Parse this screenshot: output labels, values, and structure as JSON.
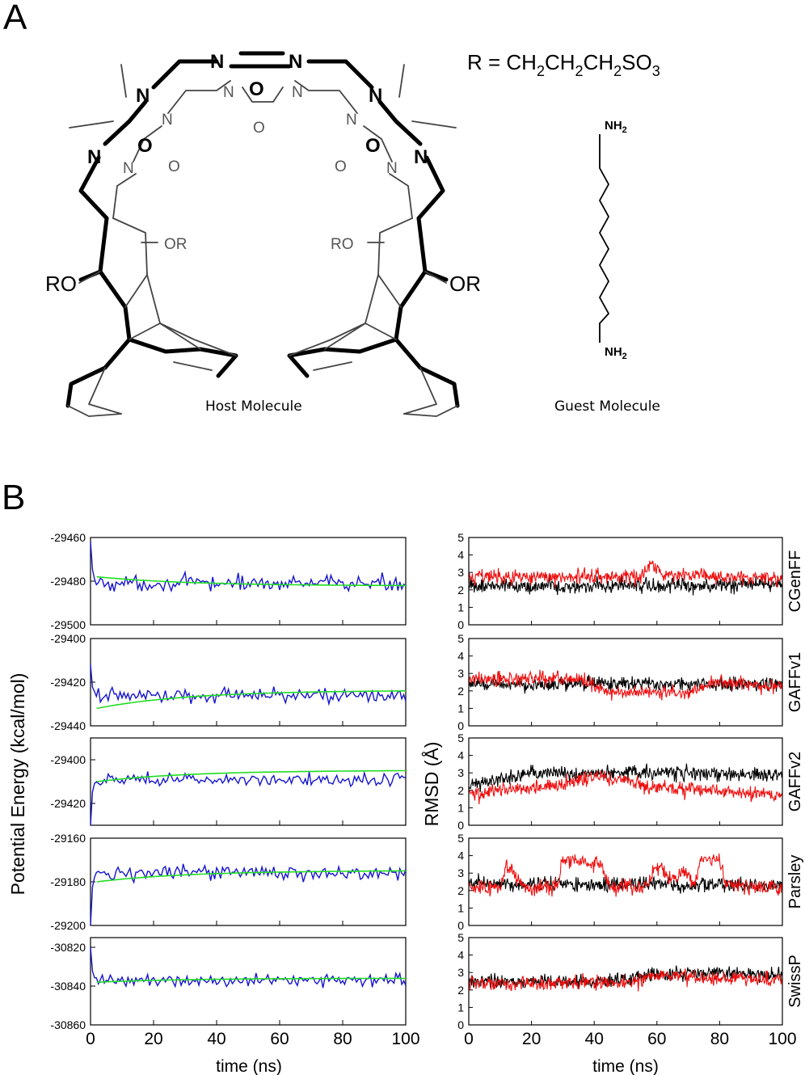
{
  "panel_a": {
    "letter": "A",
    "r_formula": {
      "prefix": "R = CH",
      "sub": "2",
      "frag": "CH",
      "end": "SO",
      "end_sub": "3"
    },
    "host_caption": "Host Molecule",
    "guest_caption": "Guest Molecule",
    "atoms": {
      "nitrogen": "N",
      "oxygen": "O",
      "ro": "RO",
      "or": "OR",
      "nh": "NH",
      "nh_sub": "2"
    }
  },
  "panel_b": {
    "letter": "B"
  },
  "chart_data": [
    {
      "type": "line",
      "title": "",
      "xlabel": "time (ns)",
      "ylabel": "Potential Energy (kcal/mol)",
      "xlim": [
        0,
        100
      ],
      "xticks": [
        0,
        20,
        40,
        60,
        80,
        100
      ],
      "grid": false,
      "series_colors": {
        "energy": "#1515d0",
        "running_average": "#22dd22"
      },
      "panels": [
        {
          "ylim": [
            -29500,
            -29460
          ],
          "yticks": [
            -29460,
            -29480,
            -29500
          ],
          "start": -29462,
          "settle": -29481,
          "noise": 3.5,
          "avg_start": -29478,
          "avg_end": -29482
        },
        {
          "ylim": [
            -29440,
            -29400
          ],
          "yticks": [
            -29400,
            -29420,
            -29440
          ],
          "start": -29412,
          "settle": -29426,
          "noise": 3.2,
          "avg_start": -29432,
          "avg_end": -29424
        },
        {
          "ylim": [
            -29430,
            -29390
          ],
          "yticks": [
            -29400,
            -29420
          ],
          "start": -29430,
          "settle": -29409,
          "noise": 2.8,
          "avg_start": -29410,
          "avg_end": -29405
        },
        {
          "ylim": [
            -29200,
            -29160
          ],
          "yticks": [
            -29160,
            -29180,
            -29200
          ],
          "start": -29200,
          "settle": -29176,
          "noise": 3.3,
          "avg_start": -29180,
          "avg_end": -29175
        },
        {
          "ylim": [
            -30860,
            -30815
          ],
          "yticks": [
            -30820,
            -30840,
            -30860
          ],
          "start": -30820,
          "settle": -30837,
          "noise": 3.3,
          "avg_start": -30838,
          "avg_end": -30836
        }
      ]
    },
    {
      "type": "line",
      "title": "",
      "xlabel": "time (ns)",
      "ylabel": "RMSD (Å)",
      "xlim": [
        0,
        100
      ],
      "xticks": [
        0,
        20,
        40,
        60,
        80,
        100
      ],
      "ylim": [
        0,
        5
      ],
      "yticks": [
        0,
        1,
        2,
        3,
        4,
        5
      ],
      "grid": false,
      "series_colors": {
        "black": "#000000",
        "red": "#ee1111"
      },
      "panels": [
        {
          "label": "CGenFF",
          "black": [
            [
              0,
              2.2
            ],
            [
              100,
              2.3
            ]
          ],
          "red": [
            [
              0,
              2.7
            ],
            [
              55,
              2.8
            ],
            [
              58,
              3.6
            ],
            [
              62,
              2.8
            ],
            [
              100,
              2.7
            ]
          ]
        },
        {
          "label": "GAFFv1",
          "black": [
            [
              0,
              2.4
            ],
            [
              100,
              2.4
            ]
          ],
          "red": [
            [
              0,
              2.7
            ],
            [
              35,
              2.7
            ],
            [
              45,
              1.9
            ],
            [
              70,
              1.9
            ],
            [
              80,
              2.5
            ],
            [
              100,
              2.2
            ]
          ]
        },
        {
          "label": "GAFFv2",
          "black": [
            [
              0,
              2.3
            ],
            [
              20,
              3.0
            ],
            [
              60,
              3.0
            ],
            [
              100,
              2.9
            ]
          ],
          "red": [
            [
              0,
              1.8
            ],
            [
              30,
              2.3
            ],
            [
              40,
              2.8
            ],
            [
              60,
              2.2
            ],
            [
              100,
              1.7
            ]
          ]
        },
        {
          "label": "Parsley",
          "black": [
            [
              0,
              2.4
            ],
            [
              100,
              2.3
            ]
          ],
          "red": [
            [
              0,
              2.2
            ],
            [
              10,
              2.2
            ],
            [
              12,
              3.5
            ],
            [
              17,
              2.2
            ],
            [
              28,
              2.2
            ],
            [
              30,
              3.8
            ],
            [
              42,
              3.5
            ],
            [
              45,
              2.2
            ],
            [
              57,
              2.2
            ],
            [
              60,
              3.5
            ],
            [
              65,
              2.5
            ],
            [
              68,
              3.2
            ],
            [
              72,
              2.3
            ],
            [
              74,
              3.8
            ],
            [
              80,
              3.8
            ],
            [
              82,
              2.3
            ],
            [
              100,
              2.2
            ]
          ]
        },
        {
          "label": "SwissP",
          "black": [
            [
              0,
              2.5
            ],
            [
              45,
              2.5
            ],
            [
              60,
              2.9
            ],
            [
              80,
              3.0
            ],
            [
              100,
              2.8
            ]
          ],
          "red": [
            [
              0,
              2.4
            ],
            [
              50,
              2.4
            ],
            [
              60,
              2.8
            ],
            [
              100,
              2.6
            ]
          ]
        }
      ]
    }
  ]
}
